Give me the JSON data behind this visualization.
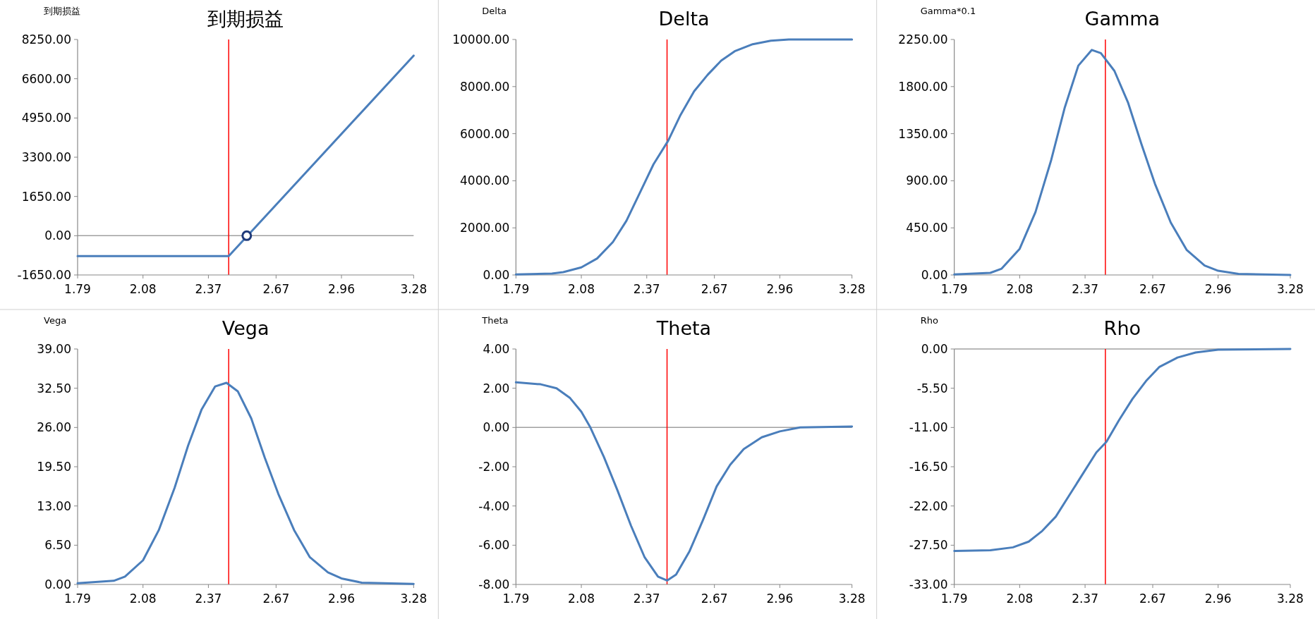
{
  "chart_data": [
    {
      "type": "line",
      "title": "到期损益",
      "ylabel": "到期损益",
      "xlim": [
        1.79,
        3.28
      ],
      "ylim": [
        -1650,
        8250
      ],
      "xticks": [
        {
          "value": 1.79,
          "label": "1.79"
        },
        {
          "value": 2.08,
          "label": "2.08"
        },
        {
          "value": 2.37,
          "label": "2.37"
        },
        {
          "value": 2.67,
          "label": "2.67"
        },
        {
          "value": 2.96,
          "label": "2.96"
        },
        {
          "value": 3.28,
          "label": "3.28"
        }
      ],
      "yticks": [
        {
          "value": -1650,
          "label": "-1650.00"
        },
        {
          "value": 0,
          "label": "0.00"
        },
        {
          "value": 1650,
          "label": "1650.00"
        },
        {
          "value": 3300,
          "label": "3300.00"
        },
        {
          "value": 4950,
          "label": "4950.00"
        },
        {
          "value": 6600,
          "label": "6600.00"
        },
        {
          "value": 8250,
          "label": "8250.00"
        }
      ],
      "ref_lines": [
        {
          "axis": "y",
          "value": 0,
          "color": "#a0a0a0"
        },
        {
          "axis": "x",
          "value": 2.46,
          "color": "#ff0000"
        }
      ],
      "series": [
        {
          "type": "line",
          "color": "#4a7ebb",
          "x": [
            1.79,
            2.46,
            3.28
          ],
          "values": [
            -860,
            -860,
            7570
          ]
        },
        {
          "type": "scatter",
          "marker": "circle",
          "color": "#1f3a7a",
          "x": [
            2.54
          ],
          "values": [
            0
          ]
        }
      ]
    },
    {
      "type": "line",
      "title": "Delta",
      "ylabel": "Delta",
      "xlim": [
        1.79,
        3.28
      ],
      "ylim": [
        0,
        10000
      ],
      "xticks": [
        {
          "value": 1.79,
          "label": "1.79"
        },
        {
          "value": 2.08,
          "label": "2.08"
        },
        {
          "value": 2.37,
          "label": "2.37"
        },
        {
          "value": 2.67,
          "label": "2.67"
        },
        {
          "value": 2.96,
          "label": "2.96"
        },
        {
          "value": 3.28,
          "label": "3.28"
        }
      ],
      "yticks": [
        {
          "value": 0,
          "label": "0.00"
        },
        {
          "value": 2000,
          "label": "2000.00"
        },
        {
          "value": 4000,
          "label": "4000.00"
        },
        {
          "value": 6000,
          "label": "6000.00"
        },
        {
          "value": 8000,
          "label": "8000.00"
        },
        {
          "value": 10000,
          "label": "10000.00"
        }
      ],
      "ref_lines": [
        {
          "axis": "x",
          "value": 2.46,
          "color": "#ff0000"
        }
      ],
      "series": [
        {
          "type": "line",
          "color": "#4a7ebb",
          "x": [
            1.79,
            1.95,
            2.0,
            2.08,
            2.15,
            2.22,
            2.28,
            2.34,
            2.4,
            2.465,
            2.52,
            2.58,
            2.64,
            2.7,
            2.76,
            2.84,
            2.92,
            3.0,
            3.28
          ],
          "values": [
            20,
            60,
            120,
            320,
            700,
            1400,
            2300,
            3500,
            4700,
            5700,
            6800,
            7800,
            8500,
            9100,
            9500,
            9800,
            9950,
            10000,
            10000
          ]
        }
      ]
    },
    {
      "type": "line",
      "title": "Gamma",
      "ylabel": "Gamma*0.1",
      "xlim": [
        1.79,
        3.28
      ],
      "ylim": [
        0,
        2250
      ],
      "xticks": [
        {
          "value": 1.79,
          "label": "1.79"
        },
        {
          "value": 2.08,
          "label": "2.08"
        },
        {
          "value": 2.37,
          "label": "2.37"
        },
        {
          "value": 2.67,
          "label": "2.67"
        },
        {
          "value": 2.96,
          "label": "2.96"
        },
        {
          "value": 3.28,
          "label": "3.28"
        }
      ],
      "yticks": [
        {
          "value": 0,
          "label": "0.00"
        },
        {
          "value": 450,
          "label": "450.00"
        },
        {
          "value": 900,
          "label": "900.00"
        },
        {
          "value": 1350,
          "label": "1350.00"
        },
        {
          "value": 1800,
          "label": "1800.00"
        },
        {
          "value": 2250,
          "label": "2250.00"
        }
      ],
      "ref_lines": [
        {
          "axis": "x",
          "value": 2.46,
          "color": "#ff0000"
        }
      ],
      "series": [
        {
          "type": "line",
          "color": "#4a7ebb",
          "x": [
            1.79,
            1.95,
            2.0,
            2.08,
            2.15,
            2.22,
            2.28,
            2.34,
            2.4,
            2.44,
            2.5,
            2.56,
            2.62,
            2.68,
            2.75,
            2.82,
            2.9,
            2.96,
            3.05,
            3.28
          ],
          "values": [
            5,
            20,
            60,
            250,
            600,
            1100,
            1600,
            2000,
            2150,
            2120,
            1950,
            1650,
            1250,
            870,
            500,
            240,
            90,
            40,
            10,
            0
          ]
        }
      ]
    },
    {
      "type": "line",
      "title": "Vega",
      "ylabel": "Vega",
      "xlim": [
        1.79,
        3.28
      ],
      "ylim": [
        0,
        39
      ],
      "xticks": [
        {
          "value": 1.79,
          "label": "1.79"
        },
        {
          "value": 2.08,
          "label": "2.08"
        },
        {
          "value": 2.37,
          "label": "2.37"
        },
        {
          "value": 2.67,
          "label": "2.67"
        },
        {
          "value": 2.96,
          "label": "2.96"
        },
        {
          "value": 3.28,
          "label": "3.28"
        }
      ],
      "yticks": [
        {
          "value": 0,
          "label": "0.00"
        },
        {
          "value": 6.5,
          "label": "6.50"
        },
        {
          "value": 13,
          "label": "13.00"
        },
        {
          "value": 19.5,
          "label": "19.50"
        },
        {
          "value": 26,
          "label": "26.00"
        },
        {
          "value": 32.5,
          "label": "32.50"
        },
        {
          "value": 39,
          "label": "39.00"
        }
      ],
      "ref_lines": [
        {
          "axis": "x",
          "value": 2.46,
          "color": "#ff0000"
        }
      ],
      "series": [
        {
          "type": "line",
          "color": "#4a7ebb",
          "x": [
            1.79,
            1.95,
            2.0,
            2.08,
            2.15,
            2.22,
            2.28,
            2.34,
            2.4,
            2.45,
            2.5,
            2.56,
            2.62,
            2.68,
            2.75,
            2.82,
            2.9,
            2.96,
            3.05,
            3.28
          ],
          "values": [
            0.2,
            0.6,
            1.3,
            4,
            9,
            16,
            23,
            29,
            32.8,
            33.4,
            32,
            27.5,
            21,
            15,
            9,
            4.5,
            2,
            1,
            0.3,
            0.1
          ]
        }
      ]
    },
    {
      "type": "line",
      "title": "Theta",
      "ylabel": "Theta",
      "xlim": [
        1.79,
        3.28
      ],
      "ylim": [
        -8,
        4
      ],
      "xticks": [
        {
          "value": 1.79,
          "label": "1.79"
        },
        {
          "value": 2.08,
          "label": "2.08"
        },
        {
          "value": 2.37,
          "label": "2.37"
        },
        {
          "value": 2.67,
          "label": "2.67"
        },
        {
          "value": 2.96,
          "label": "2.96"
        },
        {
          "value": 3.28,
          "label": "3.28"
        }
      ],
      "yticks": [
        {
          "value": -8,
          "label": "-8.00"
        },
        {
          "value": -6,
          "label": "-6.00"
        },
        {
          "value": -4,
          "label": "-4.00"
        },
        {
          "value": -2,
          "label": "-2.00"
        },
        {
          "value": 0,
          "label": "0.00"
        },
        {
          "value": 2,
          "label": "2.00"
        },
        {
          "value": 4,
          "label": "4.00"
        }
      ],
      "ref_lines": [
        {
          "axis": "y",
          "value": 0,
          "color": "#a0a0a0"
        },
        {
          "axis": "x",
          "value": 2.46,
          "color": "#ff0000"
        }
      ],
      "series": [
        {
          "type": "line",
          "color": "#4a7ebb",
          "x": [
            1.79,
            1.9,
            1.97,
            2.03,
            2.08,
            2.12,
            2.18,
            2.24,
            2.3,
            2.36,
            2.42,
            2.46,
            2.5,
            2.56,
            2.62,
            2.68,
            2.74,
            2.8,
            2.88,
            2.96,
            3.05,
            3.28
          ],
          "values": [
            2.3,
            2.2,
            2,
            1.5,
            0.8,
            0,
            -1.5,
            -3.2,
            -5,
            -6.6,
            -7.6,
            -7.8,
            -7.5,
            -6.3,
            -4.7,
            -3,
            -1.9,
            -1.1,
            -0.5,
            -0.2,
            0,
            0.05
          ]
        }
      ]
    },
    {
      "type": "line",
      "title": "Rho",
      "ylabel": "Rho",
      "xlim": [
        1.79,
        3.28
      ],
      "ylim": [
        -33,
        0
      ],
      "xticks": [
        {
          "value": 1.79,
          "label": "1.79"
        },
        {
          "value": 2.08,
          "label": "2.08"
        },
        {
          "value": 2.37,
          "label": "2.37"
        },
        {
          "value": 2.67,
          "label": "2.67"
        },
        {
          "value": 2.96,
          "label": "2.96"
        },
        {
          "value": 3.28,
          "label": "3.28"
        }
      ],
      "yticks": [
        {
          "value": -33,
          "label": "-33.00"
        },
        {
          "value": -27.5,
          "label": "-27.50"
        },
        {
          "value": -22,
          "label": "-22.00"
        },
        {
          "value": -16.5,
          "label": "-16.50"
        },
        {
          "value": -11,
          "label": "-11.00"
        },
        {
          "value": -5.5,
          "label": "-5.50"
        },
        {
          "value": 0,
          "label": "0.00"
        }
      ],
      "ref_lines": [
        {
          "axis": "y",
          "value": 0,
          "color": "#a0a0a0"
        },
        {
          "axis": "x",
          "value": 2.46,
          "color": "#ff0000"
        }
      ],
      "series": [
        {
          "type": "line",
          "color": "#4a7ebb",
          "x": [
            1.79,
            1.95,
            2.05,
            2.12,
            2.18,
            2.24,
            2.3,
            2.36,
            2.42,
            2.465,
            2.52,
            2.58,
            2.64,
            2.7,
            2.78,
            2.86,
            2.96,
            3.28
          ],
          "values": [
            -28.3,
            -28.2,
            -27.8,
            -27,
            -25.5,
            -23.5,
            -20.5,
            -17.5,
            -14.5,
            -13,
            -10,
            -7,
            -4.5,
            -2.5,
            -1.2,
            -0.5,
            -0.1,
            0
          ]
        }
      ]
    }
  ]
}
